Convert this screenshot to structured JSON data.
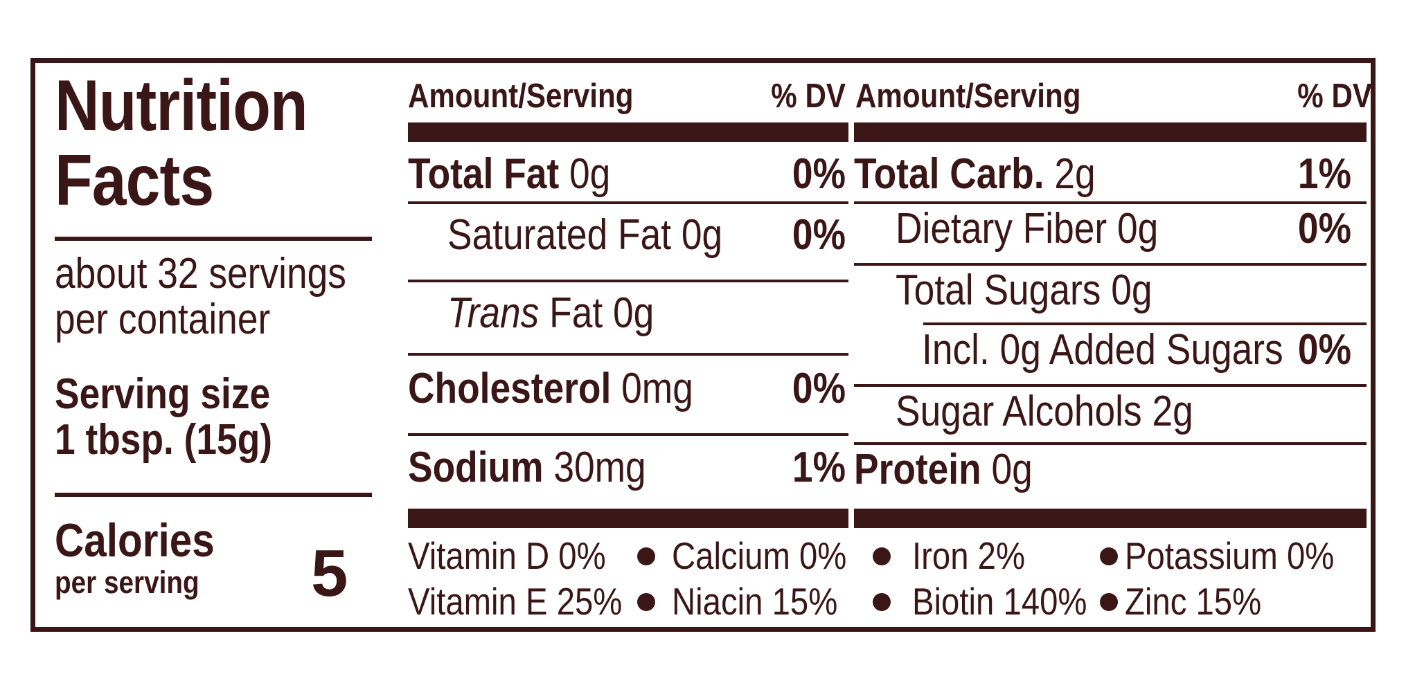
{
  "title_line1": "Nutrition",
  "title_line2": "Facts",
  "servings_line1": "about 32 servings",
  "servings_line2": "per container",
  "serving_size_label": "Serving size",
  "serving_size_value": "1 tbsp. (15g)",
  "calories_label": "Calories",
  "calories_sub": "per serving",
  "calories_value": "5",
  "left_col": {
    "header_amount": "Amount/Serving",
    "header_dv": "% DV",
    "rows": [
      {
        "name": "Total Fat",
        "amount": "0g",
        "dv": "0%"
      },
      {
        "name": "Saturated Fat 0g",
        "dv": "0%"
      },
      {
        "name_italic": "Trans",
        "name_rest": " Fat 0g"
      },
      {
        "name": "Cholesterol",
        "amount": "0mg",
        "dv": "0%"
      },
      {
        "name": "Sodium",
        "amount": "30mg",
        "dv": "1%"
      }
    ]
  },
  "right_col": {
    "header_amount": "Amount/Serving",
    "header_dv": "% DV",
    "rows": [
      {
        "name": "Total Carb.",
        "amount": "2g",
        "dv": "1%"
      },
      {
        "name": "Dietary Fiber 0g",
        "dv": "0%"
      },
      {
        "name": "Total Sugars 0g"
      },
      {
        "name": "Incl. 0g Added Sugars",
        "dv": "0%"
      },
      {
        "name": "Sugar Alcohols 2g"
      },
      {
        "name": "Protein",
        "amount": "0g"
      }
    ]
  },
  "vitamins": [
    [
      "Vitamin D 0%",
      "Calcium 0%",
      "Iron 2%",
      "Potassium 0%"
    ],
    [
      "Vitamin E 25%",
      "Niacin 15%",
      "Biotin 140%",
      "Zinc 15%"
    ]
  ],
  "colors": {
    "ink": "#3a1616",
    "background": "#ffffff"
  }
}
